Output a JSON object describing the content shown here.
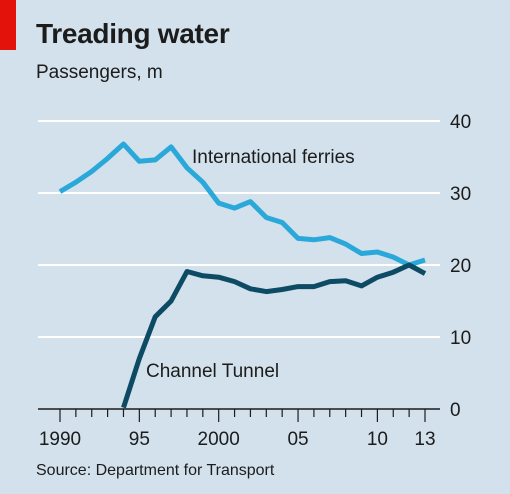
{
  "header": {
    "title": "Treading water",
    "subtitle": "Passengers, m",
    "source": "Source: Department for Transport",
    "accent_color": "#e3120b"
  },
  "chart_data": {
    "type": "line",
    "title": "Treading water",
    "ylabel": "Passengers, m",
    "xlim": [
      1990,
      2013
    ],
    "ylim": [
      0,
      40
    ],
    "y_ticks": [
      0,
      10,
      20,
      30,
      40
    ],
    "y_tick_labels": [
      "0",
      "10",
      "20",
      "30",
      "40"
    ],
    "x_ticks_major": [
      1990,
      1995,
      2000,
      2005,
      2010,
      2013
    ],
    "x_tick_labels": [
      "1990",
      "95",
      "2000",
      "05",
      "10",
      "13"
    ],
    "grid": true,
    "series": [
      {
        "name": "International ferries",
        "color": "#2aa8da",
        "x": [
          1990,
          1991,
          1992,
          1993,
          1994,
          1995,
          1996,
          1997,
          1998,
          1999,
          2000,
          2001,
          2002,
          2003,
          2004,
          2005,
          2006,
          2007,
          2008,
          2009,
          2010,
          2011,
          2012,
          2013
        ],
        "values": [
          30.2,
          31.5,
          33.0,
          34.8,
          36.8,
          34.4,
          34.6,
          36.4,
          33.5,
          31.5,
          28.6,
          27.9,
          28.8,
          26.6,
          25.9,
          23.7,
          23.5,
          23.8,
          22.9,
          21.6,
          21.8,
          21.1,
          20.0,
          20.7
        ]
      },
      {
        "name": "Channel Tunnel",
        "color": "#0d4a64",
        "x": [
          1994,
          1995,
          1996,
          1997,
          1998,
          1999,
          2000,
          2001,
          2002,
          2003,
          2004,
          2005,
          2006,
          2007,
          2008,
          2009,
          2010,
          2011,
          2012,
          2013
        ],
        "values": [
          0.2,
          7.0,
          12.8,
          15.0,
          19.1,
          18.5,
          18.3,
          17.7,
          16.7,
          16.3,
          16.6,
          17.0,
          17.0,
          17.7,
          17.8,
          17.1,
          18.3,
          19.0,
          20.0,
          18.8
        ]
      }
    ],
    "annotations": [
      "International ferries",
      "Channel Tunnel"
    ]
  }
}
